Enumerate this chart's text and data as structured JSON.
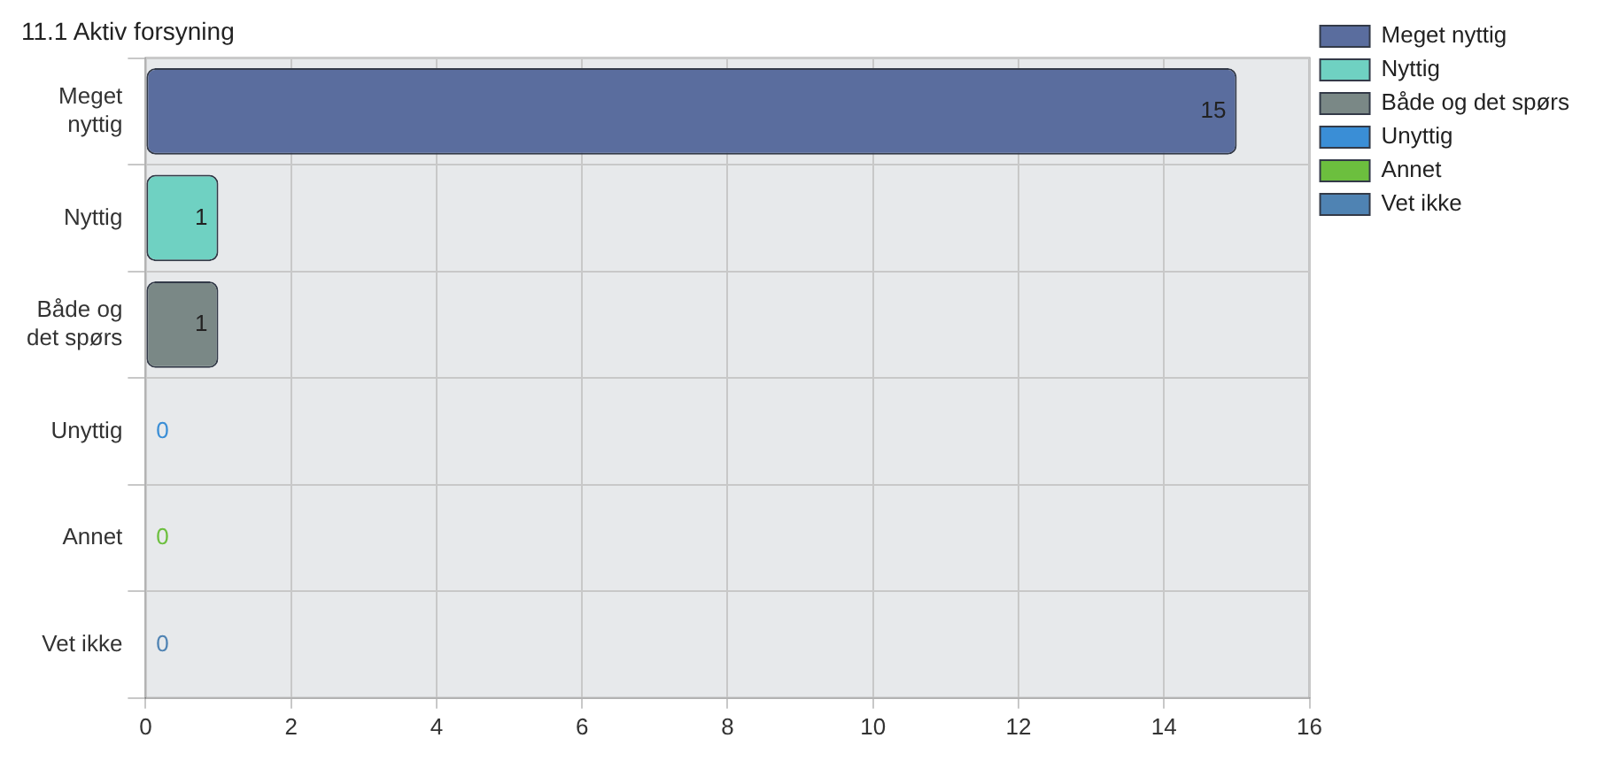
{
  "chart_data": {
    "type": "bar",
    "title": "11.1 Aktiv forsyning",
    "orientation": "horizontal",
    "stacked": true,
    "categories": [
      "Meget\nnyttig",
      "Nyttig",
      "Både og\ndet spørs",
      "Unyttig",
      "Annet",
      "Vet ikke"
    ],
    "series": [
      {
        "name": "Meget nyttig",
        "color": "#5a6d9e",
        "values": [
          15,
          null,
          null,
          null,
          null,
          null
        ]
      },
      {
        "name": "Nyttig",
        "color": "#6fd1c2",
        "values": [
          null,
          1,
          null,
          null,
          null,
          null
        ]
      },
      {
        "name": "Både og det spørs",
        "color": "#7a8886",
        "values": [
          null,
          null,
          1,
          null,
          null,
          null
        ]
      },
      {
        "name": "Unyttig",
        "color": "#3a8ed6",
        "values": [
          null,
          null,
          null,
          0,
          null,
          null
        ]
      },
      {
        "name": "Annet",
        "color": "#6cbf3e",
        "values": [
          null,
          null,
          null,
          null,
          0,
          null
        ]
      },
      {
        "name": "Vet ikke",
        "color": "#4f83b3",
        "values": [
          null,
          null,
          null,
          null,
          null,
          0
        ]
      }
    ],
    "xlim": [
      0,
      16
    ],
    "xticks": [
      0,
      2,
      4,
      6,
      8,
      10,
      12,
      14,
      16
    ],
    "grid": true,
    "legend": "top right",
    "data_labels": true
  }
}
